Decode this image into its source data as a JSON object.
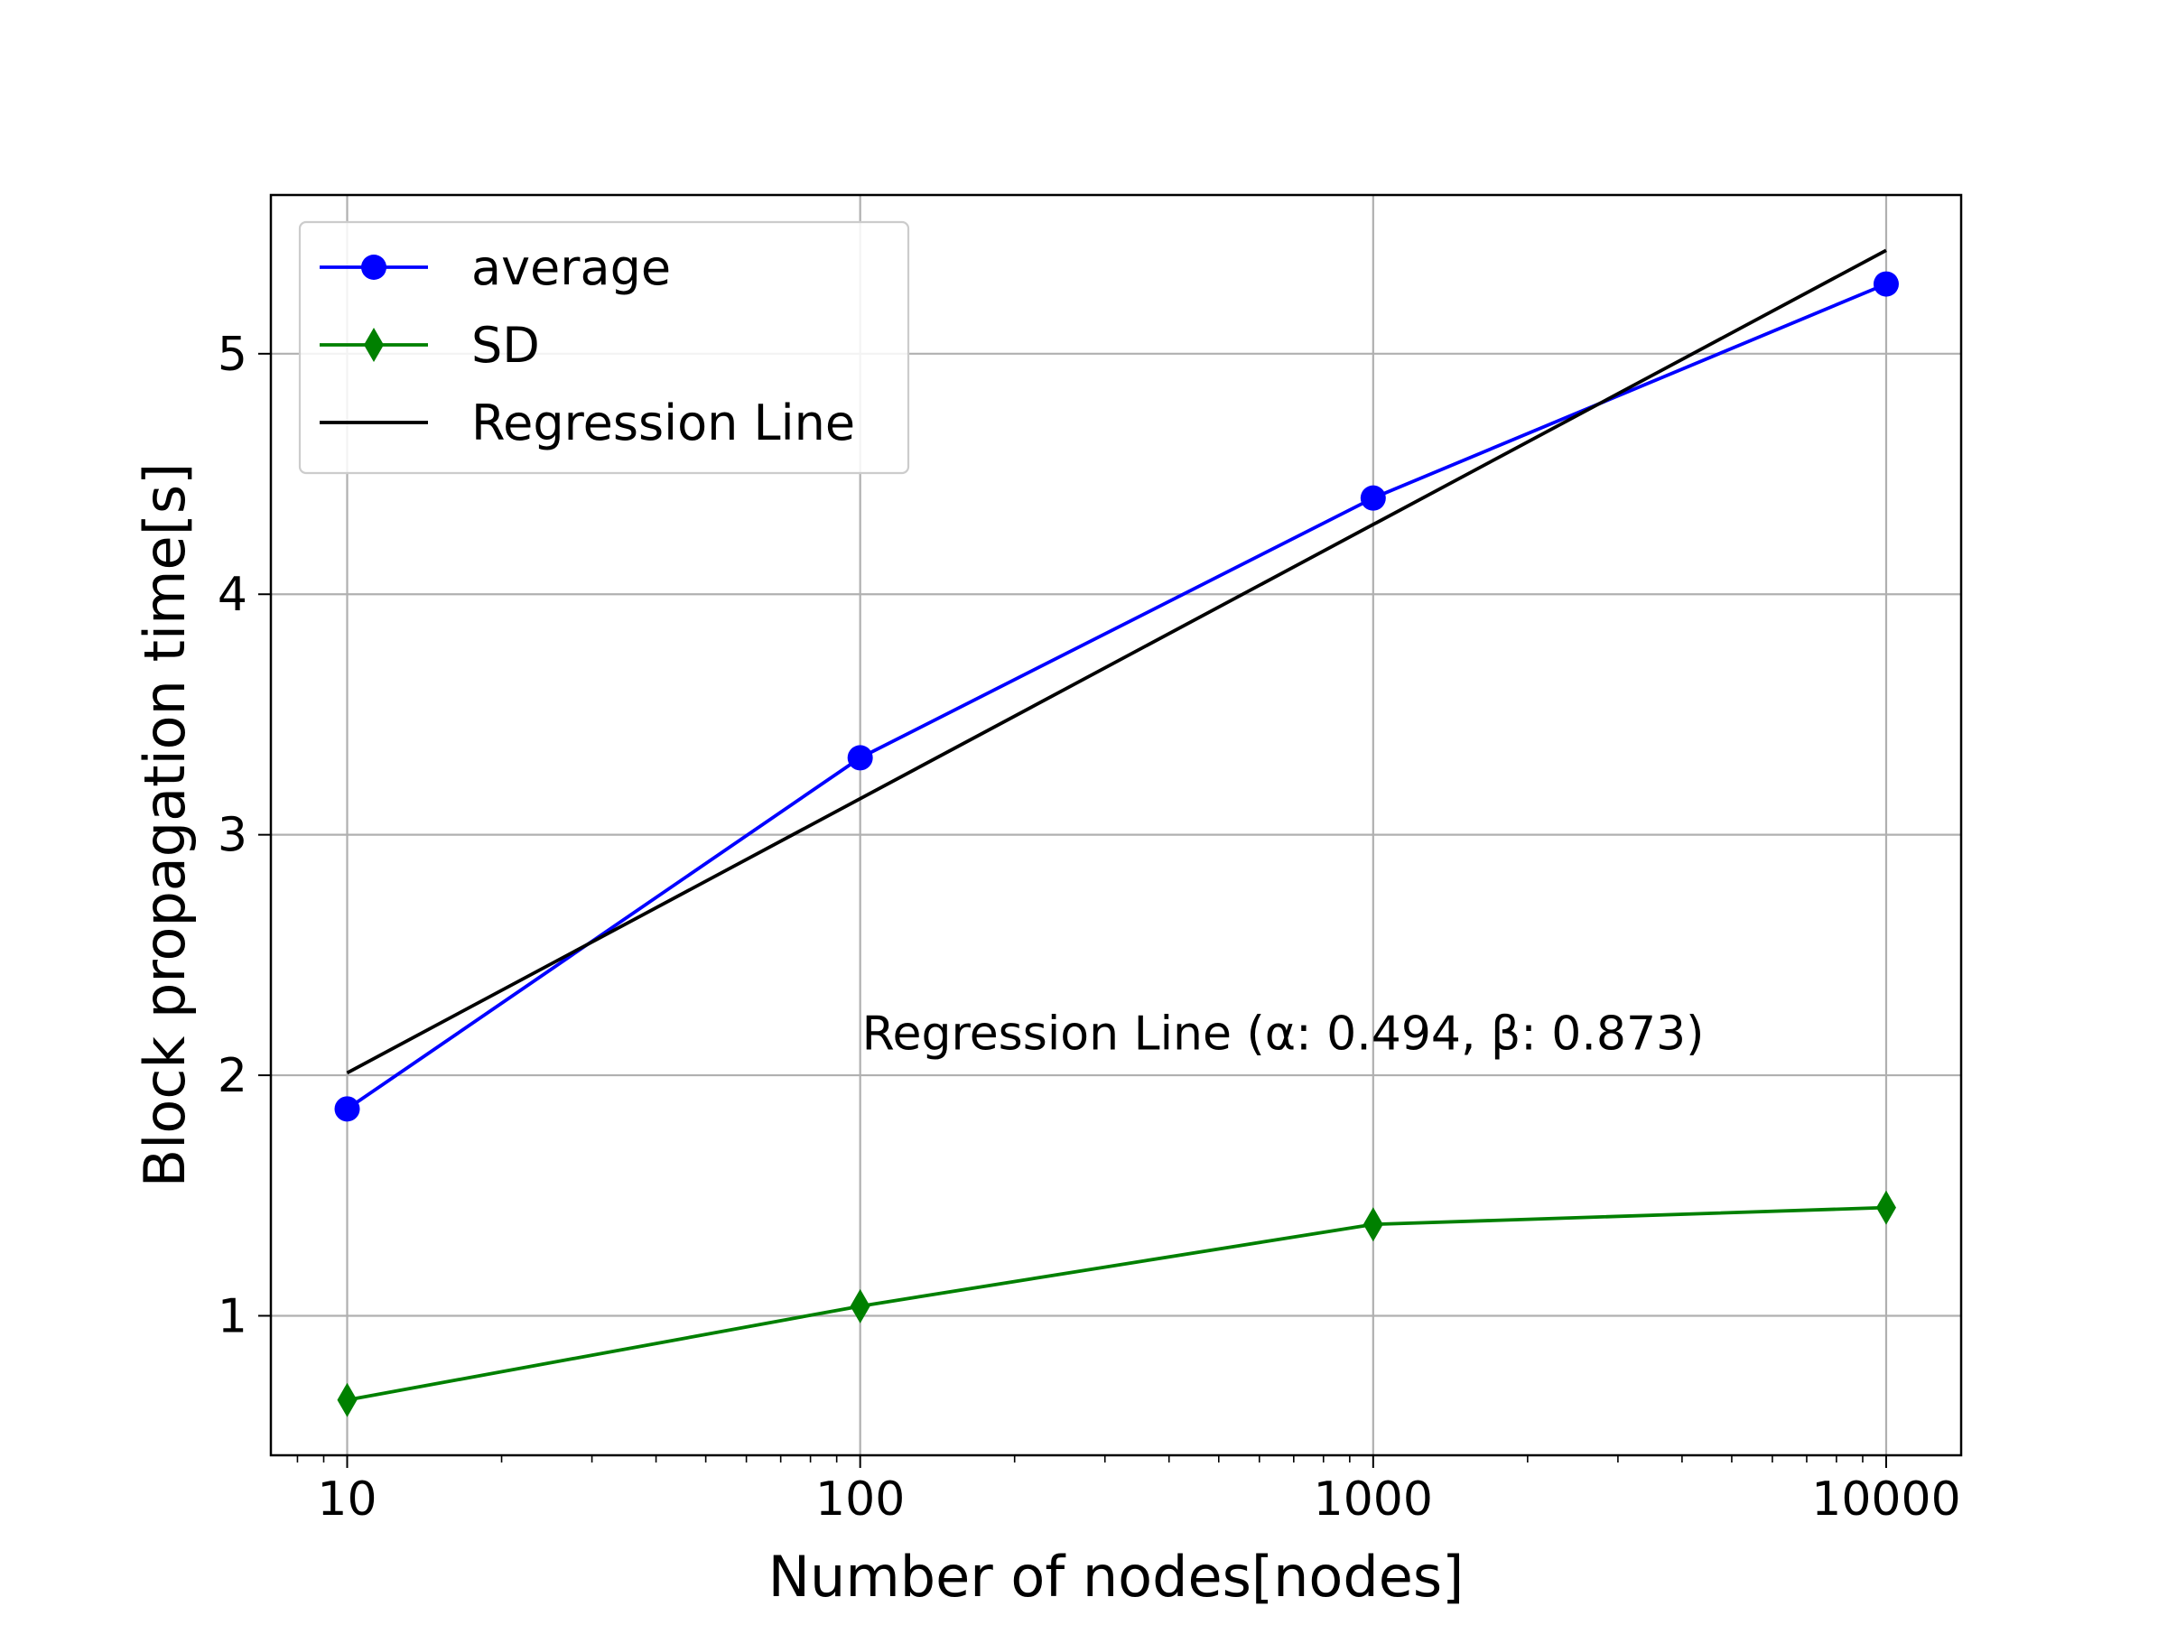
{
  "chart_data": {
    "type": "line",
    "xscale": "log",
    "x": [
      10,
      100,
      1000,
      10000
    ],
    "xlim": [
      7.1,
      14000
    ],
    "ylim": [
      0.42,
      5.66
    ],
    "xticks": [
      "10",
      "100",
      "1000",
      "10000"
    ],
    "yticks": [
      "1",
      "2",
      "3",
      "4",
      "5"
    ],
    "xlabel": "Number of nodes[nodes]",
    "ylabel": "Block propagation time[s]",
    "grid": true,
    "legend_position": "top-left",
    "series": [
      {
        "name": "average",
        "values": [
          1.86,
          3.32,
          4.4,
          5.29
        ],
        "color": "#0000ff",
        "marker": "circle"
      },
      {
        "name": "SD",
        "values": [
          0.65,
          1.04,
          1.38,
          1.45
        ],
        "color": "#008000",
        "marker": "thin-diamond"
      },
      {
        "name": "Regression Line",
        "values": [
          2.01,
          3.15,
          4.29,
          5.43
        ],
        "color": "#000000",
        "marker": "none"
      }
    ],
    "annotations": [
      {
        "text": "Regression Line (α: 0.494, β: 0.873)",
        "x": 100,
        "y": 2.1
      }
    ]
  }
}
